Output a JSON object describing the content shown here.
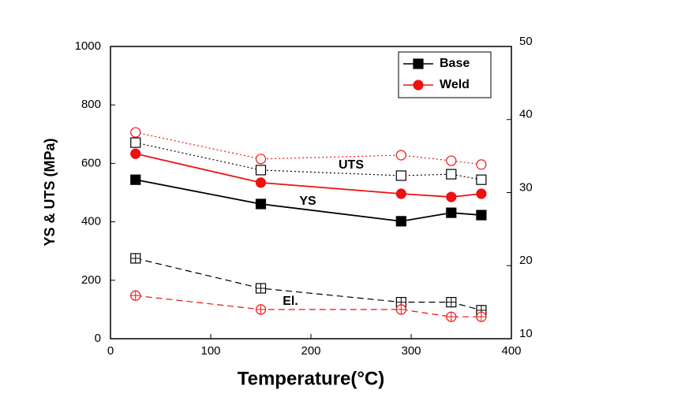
{
  "chart_data": {
    "type": "line",
    "xlabel": "Temperature(°C)",
    "ylabel": "YS & UTS (MPa)",
    "x": [
      25,
      150,
      290,
      340,
      370
    ],
    "xlim": [
      0,
      400
    ],
    "xticks": [
      0,
      100,
      200,
      300,
      400
    ],
    "ylim": [
      0,
      1000
    ],
    "yticks": [
      0,
      200,
      400,
      600,
      800,
      1000
    ],
    "y2lim": [
      10,
      50
    ],
    "y2ticks": [
      10,
      20,
      30,
      40,
      50
    ],
    "legend_position": "upper right",
    "legend": [
      {
        "name": "Base",
        "color": "#000000",
        "marker": "square"
      },
      {
        "name": "Weld",
        "color": "#ee1111",
        "marker": "circle"
      }
    ],
    "series": [
      {
        "color": "#000000",
        "style": "solid",
        "marker": "square",
        "fill": "filled",
        "values": [
          544,
          461,
          402,
          431,
          423
        ]
      },
      {
        "color": "#ee1111",
        "style": "solid",
        "marker": "circle",
        "fill": "filled",
        "values": [
          633,
          534,
          496,
          485,
          496
        ]
      },
      {
        "color": "#000000",
        "style": "dotted",
        "marker": "square",
        "fill": "open",
        "values": [
          671,
          577,
          558,
          563,
          544
        ]
      },
      {
        "color": "#ee1111",
        "style": "dotted",
        "marker": "circle",
        "fill": "open",
        "values": [
          706,
          615,
          628,
          609,
          596
        ]
      },
      {
        "color": "#000000",
        "style": "dashed",
        "marker": "square",
        "fill": "crossed",
        "axis": "y2",
        "values": [
          21.0,
          16.9,
          15.0,
          15.0,
          13.9
        ]
      },
      {
        "color": "#ee1111",
        "style": "dashed",
        "marker": "circle",
        "fill": "crossed",
        "axis": "y2",
        "values": [
          15.9,
          14.0,
          14.0,
          13.0,
          13.0
        ]
      }
    ],
    "annotations": [
      "UTS",
      "YS",
      "El."
    ]
  }
}
